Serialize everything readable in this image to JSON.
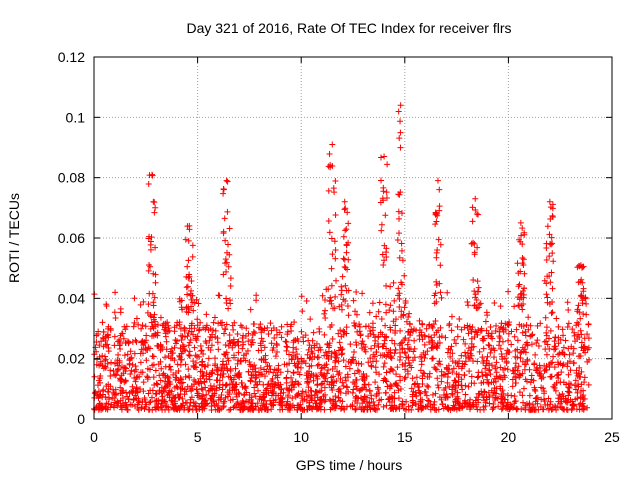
{
  "chart_data": {
    "type": "scatter",
    "title": "Day 321 of 2016, Rate Of TEC Index for receiver flrs",
    "xlabel": "GPS time / hours",
    "ylabel": "ROTI / TECUs",
    "xlim": [
      0,
      25
    ],
    "ylim": [
      0,
      0.12
    ],
    "x_ticks": [
      0,
      5,
      10,
      15,
      20,
      25
    ],
    "y_ticks": [
      0,
      0.02,
      0.04,
      0.06,
      0.08,
      0.1,
      0.12
    ],
    "x_tick_labels": [
      "0",
      "5",
      "10",
      "15",
      "20",
      "25"
    ],
    "y_tick_labels": [
      "0",
      "0.02",
      "0.04",
      "0.06",
      "0.08",
      "0.1",
      "0.12"
    ],
    "grid": true,
    "marker": "plus",
    "series_color": "#ff0000",
    "data_range_hours": [
      0,
      23.9
    ],
    "dense_band": [
      0.003,
      0.032
    ],
    "spikes": [
      {
        "x": 2.8,
        "y": 0.081
      },
      {
        "x": 4.6,
        "y": 0.064
      },
      {
        "x": 6.4,
        "y": 0.079
      },
      {
        "x": 11.5,
        "y": 0.091
      },
      {
        "x": 12.1,
        "y": 0.072
      },
      {
        "x": 14.0,
        "y": 0.087
      },
      {
        "x": 14.8,
        "y": 0.104
      },
      {
        "x": 16.6,
        "y": 0.079
      },
      {
        "x": 18.4,
        "y": 0.073
      },
      {
        "x": 20.6,
        "y": 0.065
      },
      {
        "x": 22.0,
        "y": 0.072
      },
      {
        "x": 23.5,
        "y": 0.051
      }
    ]
  }
}
